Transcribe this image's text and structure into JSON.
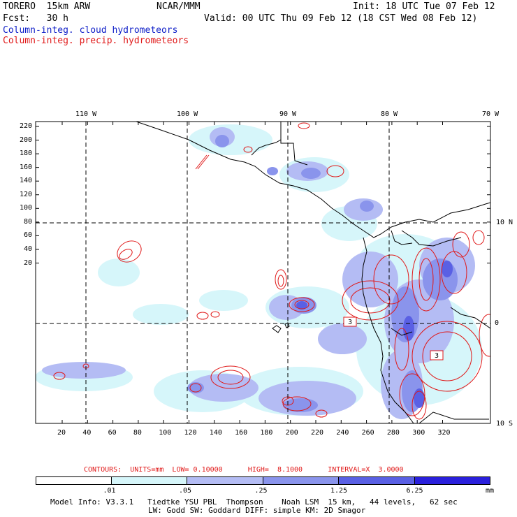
{
  "header": {
    "model": "TORERO  15km ARW",
    "org": "NCAR/MMM",
    "init": "Init: 18 UTC Tue 07 Feb 12",
    "fcst": "Fcst:   30 h",
    "valid": "Valid: 00 UTC Thu 09 Feb 12 (18 CST Wed 08 Feb 12)",
    "field1": "Column-integ. cloud hydrometeors",
    "field2": "Column-integ. precip. hydrometeors"
  },
  "axes": {
    "lon_labels": [
      "110 W",
      "100 W",
      "90 W",
      "80 W",
      "70 W"
    ],
    "lat_labels": [
      "10 N",
      "0",
      "10 S"
    ],
    "y_ticks": [
      "220",
      "200",
      "180",
      "160",
      "140",
      "120",
      "100",
      "80",
      "60",
      "40",
      "20"
    ],
    "x_ticks": [
      "20",
      "40",
      "60",
      "80",
      "100",
      "120",
      "140",
      "160",
      "180",
      "200",
      "220",
      "240",
      "260",
      "280",
      "300",
      "320"
    ]
  },
  "contour_labels": [
    "3",
    "3"
  ],
  "contours_info": "CONTOURS:  UNITS=mm  LOW= 0.10000      HIGH=  8.1000      INTERVAL=X  3.0000",
  "colorbar": {
    "labels": [
      ".01",
      ".05",
      ".25",
      "1.25",
      "6.25"
    ],
    "unit": "mm",
    "colors": [
      "#ffffff",
      "#d6f6fa",
      "#b4bcf4",
      "#8a94ec",
      "#5a60e4",
      "#2a20dc"
    ]
  },
  "model_info": {
    "line1": "Model Info: V3.3.1   Tiedtke YSU PBL  Thompson    Noah LSM  15 km,   44 levels,   62 sec",
    "line2": "LW: Godd SW: Goddard DIFF: simple KM: 2D Smagor"
  }
}
